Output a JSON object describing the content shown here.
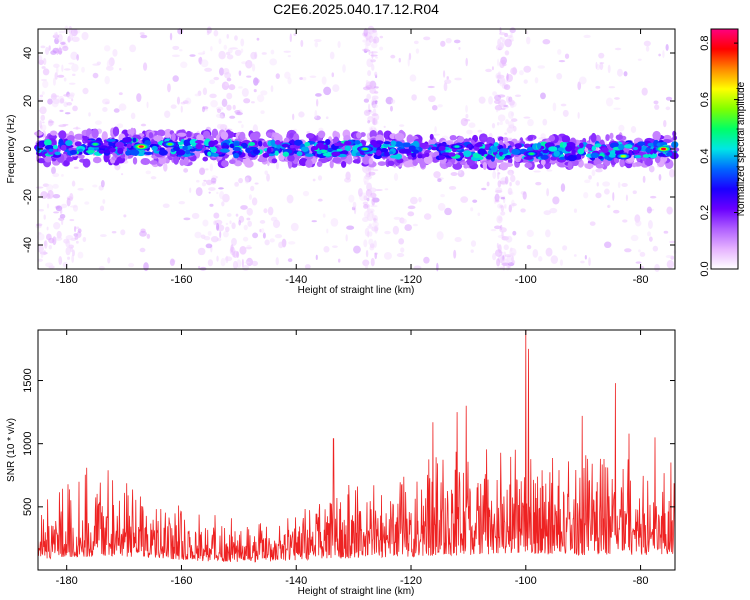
{
  "title": "C2E6.2025.040.17.12.R04",
  "chart_data": [
    {
      "type": "heatmap",
      "xlabel": "Height of straight line (km)",
      "ylabel": "Frequency (Hz)",
      "xlim": [
        -185,
        -74
      ],
      "ylim": [
        -50,
        50
      ],
      "xticks": [
        -180,
        -160,
        -140,
        -120,
        -100,
        -80
      ],
      "yticks": [
        -40,
        -20,
        0,
        20,
        40
      ],
      "colorbar": {
        "label": "Normalized spectral amplitude",
        "range": [
          0.0,
          0.85
        ],
        "ticks": [
          "0.0",
          "0.2",
          "0.4",
          "0.6",
          "0.8"
        ],
        "colors": [
          "#ffffff",
          "#e6b3ff",
          "#b060ff",
          "#6a00ff",
          "#1a00ff",
          "#0066ff",
          "#00e6e6",
          "#00ff66",
          "#80ff00",
          "#ffff00",
          "#ff8800",
          "#ff0000",
          "#ff0080"
        ]
      },
      "ridge": {
        "center_hz": [
          [
            -185,
            0
          ],
          [
            -170,
            1
          ],
          [
            -150,
            0
          ],
          [
            -130,
            0
          ],
          [
            -110,
            -1
          ],
          [
            -90,
            -1
          ],
          [
            -76,
            0
          ]
        ],
        "peaks": [
          {
            "x": -167,
            "y": 1,
            "amp": 0.82
          },
          {
            "x": -162,
            "y": 2,
            "amp": 0.55
          },
          {
            "x": -175,
            "y": 2,
            "amp": 0.5
          },
          {
            "x": -128,
            "y": 0,
            "amp": 0.55
          },
          {
            "x": -112,
            "y": 1,
            "amp": 0.45
          },
          {
            "x": -99,
            "y": -2,
            "amp": 0.5
          },
          {
            "x": -83,
            "y": -3,
            "amp": 0.6
          },
          {
            "x": -76,
            "y": 0,
            "amp": 0.8
          }
        ]
      },
      "noise_bands_km": [
        [
          -185,
          -178
        ],
        [
          -157,
          -147
        ],
        [
          -128,
          -126
        ],
        [
          -105,
          -102
        ]
      ]
    },
    {
      "type": "line",
      "xlabel": "Height of straight line (km)",
      "ylabel": "SNR (10 * v/v)",
      "xlim": [
        -185,
        -74
      ],
      "ylim": [
        0,
        1900
      ],
      "xticks": [
        -180,
        -160,
        -140,
        -120,
        -100,
        -80
      ],
      "yticks": [
        500,
        1000,
        1500
      ],
      "color": "#ee2222",
      "envelope": [
        [
          -185,
          250,
          600
        ],
        [
          -180,
          280,
          700
        ],
        [
          -176,
          300,
          820
        ],
        [
          -172,
          300,
          750
        ],
        [
          -168,
          290,
          700
        ],
        [
          -164,
          260,
          620
        ],
        [
          -160,
          230,
          560
        ],
        [
          -156,
          200,
          480
        ],
        [
          -152,
          180,
          420
        ],
        [
          -148,
          180,
          400
        ],
        [
          -144,
          190,
          420
        ],
        [
          -140,
          210,
          500
        ],
        [
          -136,
          240,
          600
        ],
        [
          -132,
          260,
          700
        ],
        [
          -128,
          280,
          720
        ],
        [
          -124,
          290,
          780
        ],
        [
          -120,
          300,
          850
        ],
        [
          -116,
          320,
          900
        ],
        [
          -112,
          330,
          980
        ],
        [
          -108,
          340,
          950
        ],
        [
          -104,
          350,
          1000
        ],
        [
          -100,
          380,
          1050
        ],
        [
          -96,
          350,
          950
        ],
        [
          -92,
          340,
          900
        ],
        [
          -88,
          330,
          950
        ],
        [
          -84,
          350,
          1000
        ],
        [
          -80,
          330,
          900
        ],
        [
          -76,
          350,
          900
        ],
        [
          -74,
          360,
          950
        ]
      ],
      "spikes": [
        {
          "x": -176.5,
          "y": 810
        },
        {
          "x": -172.8,
          "y": 790
        },
        {
          "x": -133.5,
          "y": 1040
        },
        {
          "x": -116.2,
          "y": 1170
        },
        {
          "x": -112.0,
          "y": 1250
        },
        {
          "x": -110.4,
          "y": 1300
        },
        {
          "x": -100.0,
          "y": 1910
        },
        {
          "x": -99.5,
          "y": 1750
        },
        {
          "x": -90.2,
          "y": 1220
        },
        {
          "x": -84.4,
          "y": 1480
        },
        {
          "x": -82.0,
          "y": 1080
        },
        {
          "x": -77.5,
          "y": 1050
        }
      ]
    }
  ]
}
